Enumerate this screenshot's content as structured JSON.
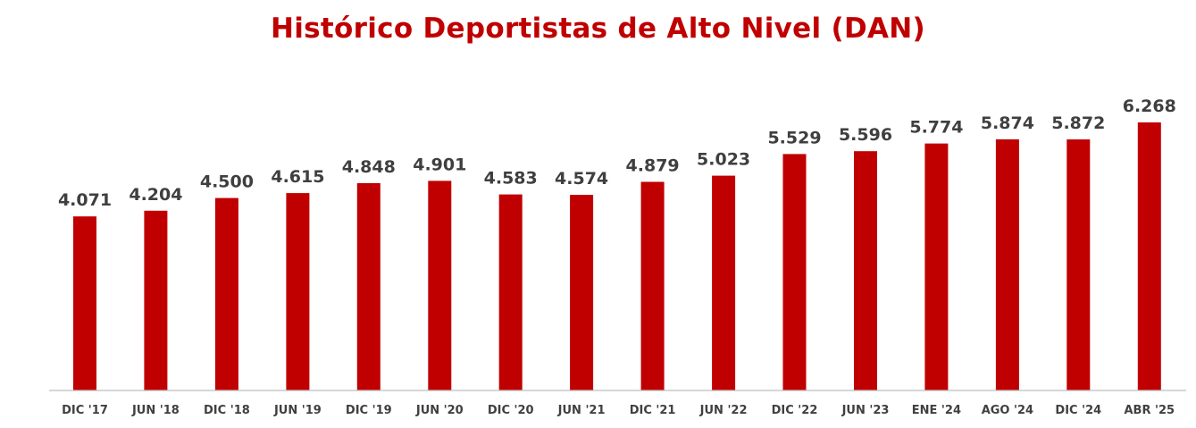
{
  "chart_data": {
    "type": "bar",
    "title": "Histórico Deportistas de Alto Nivel (DAN)",
    "xlabel": "",
    "ylabel": "",
    "categories": [
      "DIC '17",
      "JUN '18",
      "DIC '18",
      "JUN '19",
      "DIC '19",
      "JUN '20",
      "DIC '20",
      "JUN '21",
      "DIC '21",
      "JUN '22",
      "DIC '22",
      "JUN '23",
      "ENE '24",
      "AGO '24",
      "DIC '24",
      "ABR '25"
    ],
    "values": [
      4071,
      4204,
      4500,
      4615,
      4848,
      4901,
      4583,
      4574,
      4879,
      5023,
      5529,
      5596,
      5774,
      5874,
      5872,
      6268
    ],
    "value_labels": [
      "4.071",
      "4.204",
      "4.500",
      "4.615",
      "4.848",
      "4.901",
      "4.583",
      "4.574",
      "4.879",
      "5.023",
      "5.529",
      "5.596",
      "5.774",
      "5.874",
      "5.872",
      "6.268"
    ],
    "ylim": [
      0,
      6268
    ],
    "grid": false,
    "legend": "none",
    "bar_color": "#c00000",
    "title_color": "#c00000",
    "label_color": "#3f3f3f",
    "axis_color": "#bfbfbf"
  }
}
